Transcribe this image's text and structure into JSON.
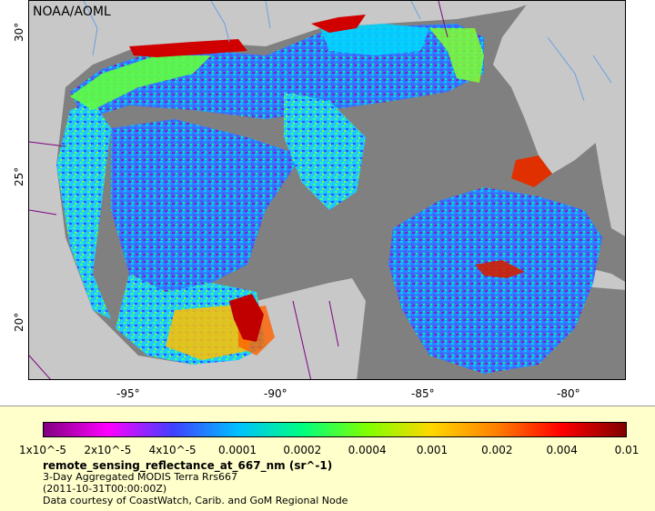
{
  "credit": "NOAA/AOML",
  "map": {
    "lon_labels": [
      "-95°",
      "-90°",
      "-85°",
      "-80°"
    ],
    "lat_labels": [
      "30°",
      "25°",
      "20°"
    ],
    "land_color": "#c8c8c8",
    "nodata_color": "#808080",
    "river_color": "#6aa0e0",
    "border_color": "#800080"
  },
  "legend": {
    "colorbar_stops": [
      "#800080",
      "#ff00ff",
      "#4040ff",
      "#00c0ff",
      "#00ff80",
      "#80ff00",
      "#ffd700",
      "#ff8000",
      "#ff0000",
      "#800000"
    ],
    "tick_labels": [
      "1x10^-5",
      "2x10^-5",
      "4x10^-5",
      "0.0001",
      "0.0002",
      "0.0004",
      "0.001",
      "0.002",
      "0.004",
      "0.01"
    ],
    "title": "remote_sensing_reflectance_at_667_nm (sr^-1)",
    "line1": "3-Day Aggregated MODIS Terra Rrs667",
    "line2": "(2011-10-31T00:00:00Z)",
    "line3": "Data courtesy of CoastWatch, Carib. and GoM Regional Node"
  }
}
